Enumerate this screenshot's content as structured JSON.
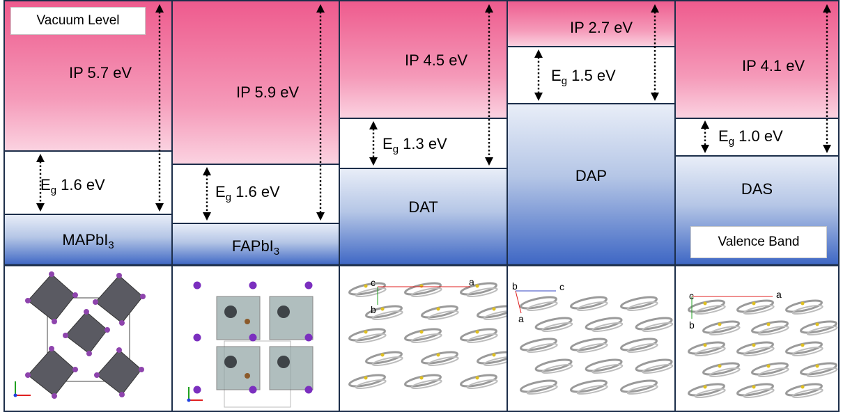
{
  "labels": {
    "vacuum_level": "Vacuum Level",
    "valence_band": "Valence Band"
  },
  "materials": [
    {
      "id": "mapbi3",
      "name_main": "MAPbI",
      "name_sub": "3",
      "ip_text": "IP 5.7 eV",
      "eg_main": "E",
      "eg_sub": "g",
      "eg_text": " 1.6 eV",
      "ip_ev": 5.7,
      "eg_ev": 1.6
    },
    {
      "id": "fapbi3",
      "name_main": "FAPbI",
      "name_sub": "3",
      "ip_text": "IP 5.9 eV",
      "eg_main": "E",
      "eg_sub": "g",
      "eg_text": " 1.6 eV",
      "ip_ev": 5.9,
      "eg_ev": 1.6
    },
    {
      "id": "dat",
      "name_main": "DAT",
      "name_sub": "",
      "ip_text": "IP 4.5 eV",
      "eg_main": "E",
      "eg_sub": "g",
      "eg_text": " 1.3 eV",
      "ip_ev": 4.5,
      "eg_ev": 1.3
    },
    {
      "id": "dap",
      "name_main": "DAP",
      "name_sub": "",
      "ip_text": "IP 2.7 eV",
      "eg_main": "E",
      "eg_sub": "g",
      "eg_text": " 1.5 eV",
      "ip_ev": 2.7,
      "eg_ev": 1.5
    },
    {
      "id": "das",
      "name_main": "DAS",
      "name_sub": "",
      "ip_text": "IP 4.1 eV",
      "eg_main": "E",
      "eg_sub": "g",
      "eg_text": " 1.0 eV",
      "ip_ev": 4.1,
      "eg_ev": 1.0
    }
  ],
  "axis_labels": {
    "dat": [
      "c",
      "b",
      "a"
    ],
    "dap": [
      "b",
      "c",
      "a"
    ],
    "das": [
      "c",
      "a",
      "b"
    ]
  },
  "colors": {
    "ip_top": "#ee5a8d",
    "ip_bottom": "#fbd3e1",
    "vb_top": "#e9eef8",
    "vb_bottom": "#3d66c4",
    "frame": "#1c2e4a",
    "octahedron": "#5a5a62",
    "iodine": "#8e44ad",
    "molecule": "#9a9a9a",
    "sulfur": "#e0c020"
  }
}
